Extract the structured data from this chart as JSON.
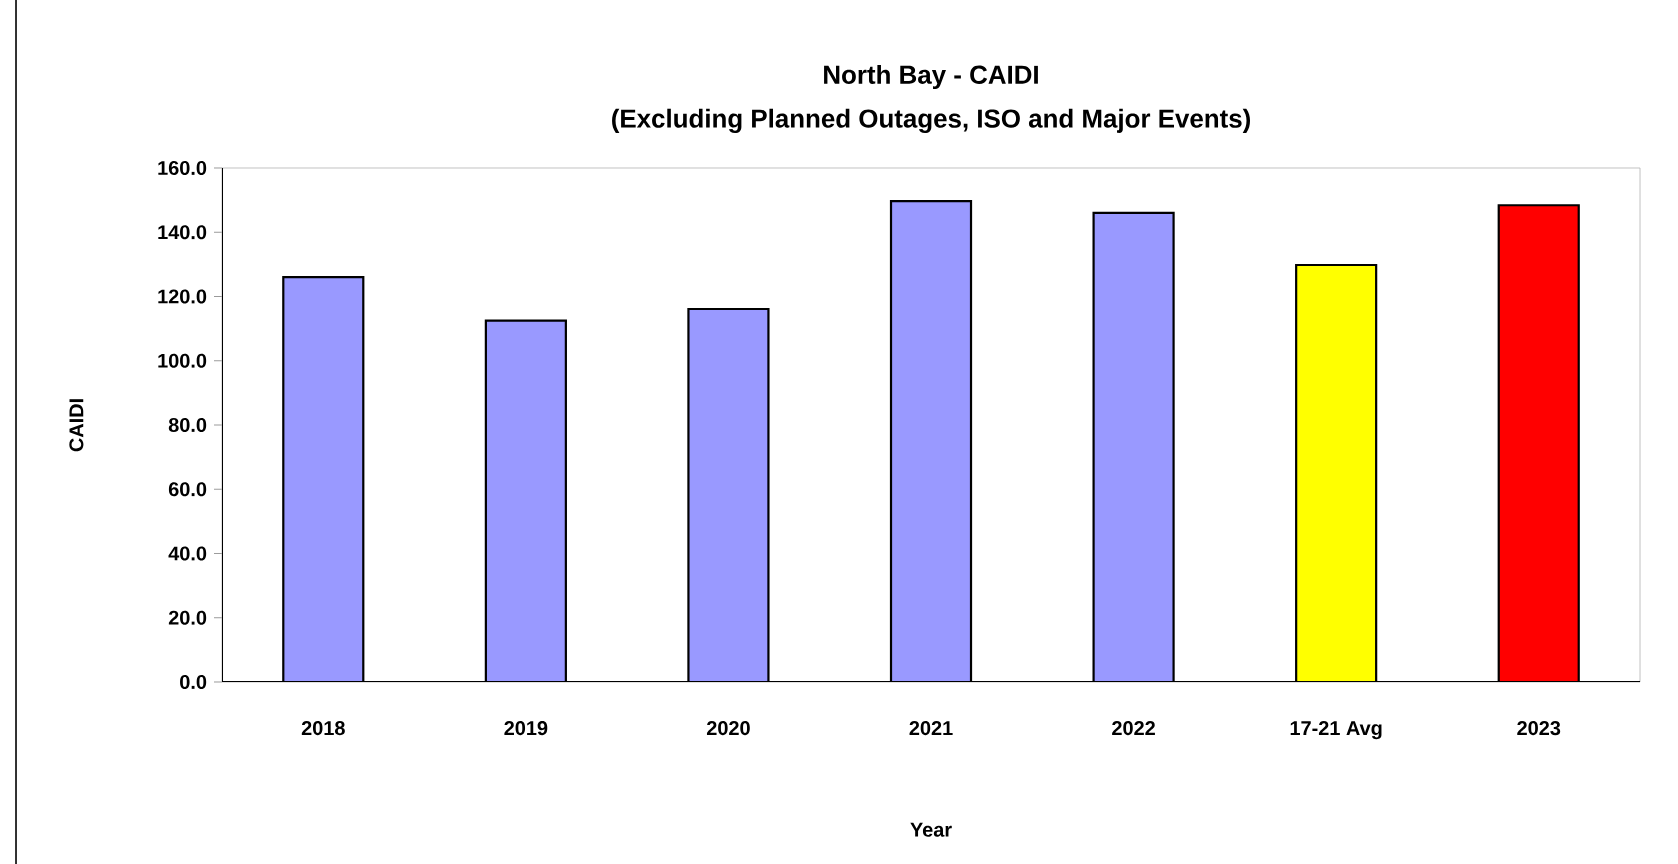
{
  "chart_data": {
    "type": "bar",
    "title": "North Bay - CAIDI\n(Excluding Planned Outages, ISO and Major Events)",
    "xlabel": "Year",
    "ylabel": "CAIDI",
    "categories": [
      "2018",
      "2019",
      "2020",
      "2021",
      "2022",
      "17-21 Avg",
      "2023"
    ],
    "values": [
      126.0,
      112.5,
      116.1,
      149.7,
      146.0,
      129.8,
      148.4
    ],
    "colors": [
      "#9999ff",
      "#9999ff",
      "#9999ff",
      "#9999ff",
      "#9999ff",
      "#ffff00",
      "#ff0000"
    ],
    "ylim": [
      0,
      160
    ],
    "yticks": [
      {
        "value": 0,
        "label": "0.0"
      },
      {
        "value": 20,
        "label": "20.0"
      },
      {
        "value": 40,
        "label": "40.0"
      },
      {
        "value": 60,
        "label": "60.0"
      },
      {
        "value": 80,
        "label": "80.0"
      },
      {
        "value": 100,
        "label": "100.0"
      },
      {
        "value": 120,
        "label": "120.0"
      },
      {
        "value": 140,
        "label": "140.0"
      },
      {
        "value": 160,
        "label": "160.0"
      }
    ],
    "grid": false
  }
}
